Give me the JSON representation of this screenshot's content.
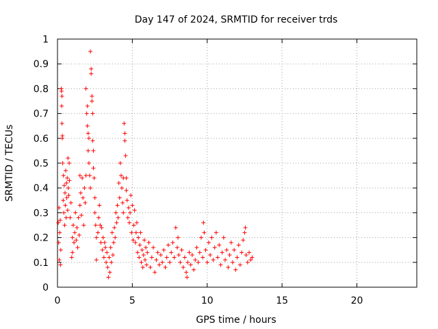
{
  "chart_data": {
    "type": "scatter",
    "title": "Day 147 of 2024, SRMTID for receiver trds",
    "xlabel": "GPS time / hours",
    "ylabel": "SRMTID / TECUs",
    "xlim": [
      0,
      24
    ],
    "ylim": [
      0,
      1
    ],
    "xticks": [
      0,
      5,
      10,
      15,
      20
    ],
    "xtick_labels": [
      "0",
      "5",
      "10",
      "15",
      "20"
    ],
    "yticks": [
      0,
      0.1,
      0.2,
      0.3,
      0.4,
      0.5,
      0.6,
      0.7,
      0.8,
      0.9,
      1
    ],
    "ytick_labels": [
      "0",
      "0.1",
      "0.2",
      "0.3",
      "0.4",
      "0.5",
      "0.6",
      "0.7",
      "0.8",
      "0.9",
      "1"
    ],
    "grid": true,
    "marker": "+",
    "color": "#ff0000",
    "series": [
      {
        "name": "SRMTID",
        "points": [
          [
            0.05,
            0.26
          ],
          [
            0.08,
            0.18
          ],
          [
            0.1,
            0.32
          ],
          [
            0.12,
            0.11
          ],
          [
            0.15,
            0.22
          ],
          [
            0.18,
            0.27
          ],
          [
            0.2,
            0.09
          ],
          [
            0.22,
            0.15
          ],
          [
            0.25,
            0.8
          ],
          [
            0.27,
            0.79
          ],
          [
            0.28,
            0.73
          ],
          [
            0.3,
            0.77
          ],
          [
            0.3,
            0.66
          ],
          [
            0.32,
            0.6
          ],
          [
            0.33,
            0.61
          ],
          [
            0.35,
            0.5
          ],
          [
            0.38,
            0.35
          ],
          [
            0.4,
            0.45
          ],
          [
            0.42,
            0.3
          ],
          [
            0.45,
            0.41
          ],
          [
            0.48,
            0.25
          ],
          [
            0.5,
            0.38
          ],
          [
            0.52,
            0.33
          ],
          [
            0.55,
            0.47
          ],
          [
            0.58,
            0.28
          ],
          [
            0.6,
            0.42
          ],
          [
            0.62,
            0.36
          ],
          [
            0.65,
            0.44
          ],
          [
            0.68,
            0.31
          ],
          [
            0.7,
            0.52
          ],
          [
            0.72,
            0.4
          ],
          [
            0.75,
            0.37
          ],
          [
            0.78,
            0.5
          ],
          [
            0.8,
            0.43
          ],
          [
            0.85,
            0.28
          ],
          [
            0.9,
            0.34
          ],
          [
            0.95,
            0.12
          ],
          [
            1.0,
            0.14
          ],
          [
            1.0,
            0.2
          ],
          [
            1.05,
            0.25
          ],
          [
            1.1,
            0.18
          ],
          [
            1.15,
            0.22
          ],
          [
            1.2,
            0.3
          ],
          [
            1.25,
            0.19
          ],
          [
            1.3,
            0.24
          ],
          [
            1.35,
            0.16
          ],
          [
            1.4,
            0.28
          ],
          [
            1.45,
            0.21
          ],
          [
            1.5,
            0.33
          ],
          [
            1.5,
            0.45
          ],
          [
            1.55,
            0.38
          ],
          [
            1.6,
            0.29
          ],
          [
            1.65,
            0.44
          ],
          [
            1.7,
            0.36
          ],
          [
            1.75,
            0.25
          ],
          [
            1.8,
            0.4
          ],
          [
            1.85,
            0.34
          ],
          [
            1.9,
            0.45
          ],
          [
            1.9,
            0.8
          ],
          [
            1.95,
            0.7
          ],
          [
            2.0,
            0.65
          ],
          [
            2.0,
            0.73
          ],
          [
            2.05,
            0.62
          ],
          [
            2.05,
            0.55
          ],
          [
            2.1,
            0.6
          ],
          [
            2.1,
            0.5
          ],
          [
            2.15,
            0.45
          ],
          [
            2.2,
            0.4
          ],
          [
            2.2,
            0.95
          ],
          [
            2.25,
            0.88
          ],
          [
            2.25,
            0.86
          ],
          [
            2.3,
            0.77
          ],
          [
            2.3,
            0.75
          ],
          [
            2.35,
            0.7
          ],
          [
            2.35,
            0.59
          ],
          [
            2.4,
            0.55
          ],
          [
            2.4,
            0.48
          ],
          [
            2.45,
            0.44
          ],
          [
            2.5,
            0.36
          ],
          [
            2.5,
            0.3
          ],
          [
            2.55,
            0.25
          ],
          [
            2.6,
            0.2
          ],
          [
            2.6,
            0.11
          ],
          [
            2.7,
            0.22
          ],
          [
            2.75,
            0.28
          ],
          [
            2.8,
            0.33
          ],
          [
            2.85,
            0.25
          ],
          [
            2.9,
            0.18
          ],
          [
            2.95,
            0.24
          ],
          [
            3.0,
            0.15
          ],
          [
            3.05,
            0.2
          ],
          [
            3.1,
            0.12
          ],
          [
            3.15,
            0.18
          ],
          [
            3.2,
            0.16
          ],
          [
            3.25,
            0.1
          ],
          [
            3.3,
            0.14
          ],
          [
            3.35,
            0.08
          ],
          [
            3.4,
            0.04
          ],
          [
            3.45,
            0.12
          ],
          [
            3.5,
            0.06
          ],
          [
            3.55,
            0.16
          ],
          [
            3.6,
            0.1
          ],
          [
            3.65,
            0.22
          ],
          [
            3.7,
            0.13
          ],
          [
            3.75,
            0.18
          ],
          [
            3.8,
            0.24
          ],
          [
            3.85,
            0.2
          ],
          [
            3.9,
            0.3
          ],
          [
            3.95,
            0.26
          ],
          [
            4.0,
            0.33
          ],
          [
            4.05,
            0.28
          ],
          [
            4.1,
            0.42
          ],
          [
            4.15,
            0.36
          ],
          [
            4.2,
            0.5
          ],
          [
            4.25,
            0.45
          ],
          [
            4.3,
            0.4
          ],
          [
            4.35,
            0.34
          ],
          [
            4.4,
            0.44
          ],
          [
            4.4,
            0.3
          ],
          [
            4.45,
            0.66
          ],
          [
            4.5,
            0.62
          ],
          [
            4.5,
            0.59
          ],
          [
            4.55,
            0.53
          ],
          [
            4.6,
            0.44
          ],
          [
            4.6,
            0.39
          ],
          [
            4.65,
            0.35
          ],
          [
            4.7,
            0.28
          ],
          [
            4.75,
            0.32
          ],
          [
            4.8,
            0.26
          ],
          [
            4.85,
            0.3
          ],
          [
            4.9,
            0.37
          ],
          [
            4.95,
            0.22
          ],
          [
            5.0,
            0.33
          ],
          [
            5.05,
            0.19
          ],
          [
            5.1,
            0.25
          ],
          [
            5.15,
            0.31
          ],
          [
            5.2,
            0.18
          ],
          [
            5.25,
            0.22
          ],
          [
            5.3,
            0.26
          ],
          [
            5.35,
            0.14
          ],
          [
            5.4,
            0.2
          ],
          [
            5.45,
            0.12
          ],
          [
            5.5,
            0.17
          ],
          [
            5.55,
            0.22
          ],
          [
            5.6,
            0.1
          ],
          [
            5.65,
            0.15
          ],
          [
            5.7,
            0.08
          ],
          [
            5.75,
            0.13
          ],
          [
            5.8,
            0.19
          ],
          [
            5.85,
            0.11
          ],
          [
            5.9,
            0.16
          ],
          [
            5.95,
            0.09
          ],
          [
            6.0,
            0.14
          ],
          [
            6.1,
            0.18
          ],
          [
            6.2,
            0.08
          ],
          [
            6.3,
            0.12
          ],
          [
            6.4,
            0.16
          ],
          [
            6.5,
            0.06
          ],
          [
            6.6,
            0.11
          ],
          [
            6.7,
            0.14
          ],
          [
            6.8,
            0.09
          ],
          [
            6.9,
            0.13
          ],
          [
            7.0,
            0.1
          ],
          [
            7.1,
            0.15
          ],
          [
            7.2,
            0.08
          ],
          [
            7.3,
            0.12
          ],
          [
            7.4,
            0.17
          ],
          [
            7.5,
            0.1
          ],
          [
            7.6,
            0.14
          ],
          [
            7.7,
            0.18
          ],
          [
            7.8,
            0.12
          ],
          [
            7.9,
            0.24
          ],
          [
            8.0,
            0.16
          ],
          [
            8.05,
            0.2
          ],
          [
            8.1,
            0.13
          ],
          [
            8.2,
            0.1
          ],
          [
            8.3,
            0.15
          ],
          [
            8.4,
            0.08
          ],
          [
            8.5,
            0.12
          ],
          [
            8.6,
            0.06
          ],
          [
            8.65,
            0.04
          ],
          [
            8.7,
            0.1
          ],
          [
            8.8,
            0.14
          ],
          [
            8.9,
            0.09
          ],
          [
            9.0,
            0.13
          ],
          [
            9.1,
            0.07
          ],
          [
            9.2,
            0.11
          ],
          [
            9.3,
            0.16
          ],
          [
            9.4,
            0.1
          ],
          [
            9.5,
            0.14
          ],
          [
            9.6,
            0.2
          ],
          [
            9.7,
            0.12
          ],
          [
            9.75,
            0.26
          ],
          [
            9.8,
            0.22
          ],
          [
            9.9,
            0.15
          ],
          [
            10.0,
            0.1
          ],
          [
            10.1,
            0.18
          ],
          [
            10.2,
            0.13
          ],
          [
            10.3,
            0.2
          ],
          [
            10.4,
            0.11
          ],
          [
            10.5,
            0.16
          ],
          [
            10.6,
            0.22
          ],
          [
            10.7,
            0.12
          ],
          [
            10.8,
            0.17
          ],
          [
            10.9,
            0.09
          ],
          [
            11.0,
            0.14
          ],
          [
            11.1,
            0.2
          ],
          [
            11.2,
            0.11
          ],
          [
            11.3,
            0.15
          ],
          [
            11.4,
            0.08
          ],
          [
            11.5,
            0.13
          ],
          [
            11.6,
            0.18
          ],
          [
            11.7,
            0.1
          ],
          [
            11.8,
            0.15
          ],
          [
            11.9,
            0.07
          ],
          [
            12.0,
            0.12
          ],
          [
            12.1,
            0.17
          ],
          [
            12.2,
            0.09
          ],
          [
            12.3,
            0.14
          ],
          [
            12.4,
            0.19
          ],
          [
            12.5,
            0.22
          ],
          [
            12.55,
            0.24
          ],
          [
            12.6,
            0.13
          ],
          [
            12.7,
            0.1
          ],
          [
            12.8,
            0.14
          ],
          [
            12.9,
            0.11
          ],
          [
            13.0,
            0.12
          ]
        ]
      }
    ]
  }
}
